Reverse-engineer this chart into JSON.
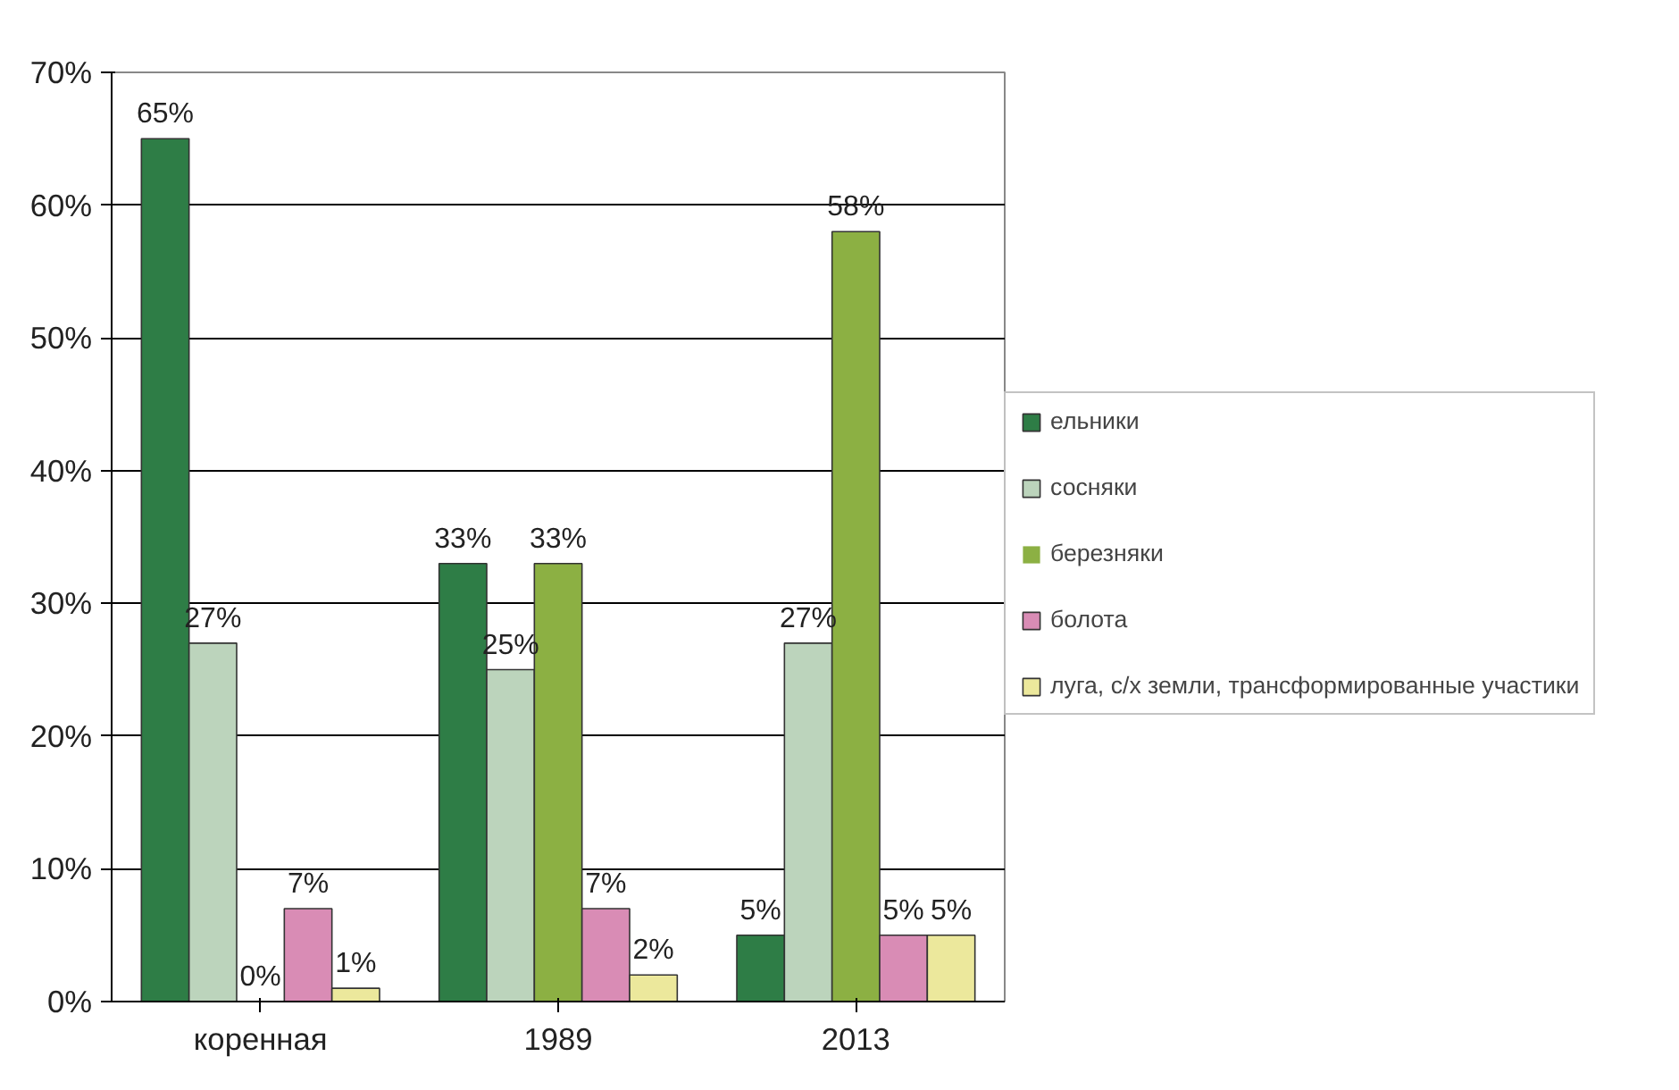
{
  "chart_data": {
    "type": "bar",
    "categories": [
      "коренная",
      "1989",
      "2013"
    ],
    "ylim": [
      0,
      70
    ],
    "yticks": [
      {
        "value": 0,
        "label": "0%"
      },
      {
        "value": 10,
        "label": "10%"
      },
      {
        "value": 20,
        "label": "20%"
      },
      {
        "value": 30,
        "label": "30%"
      },
      {
        "value": 40,
        "label": "40%"
      },
      {
        "value": 50,
        "label": "50%"
      },
      {
        "value": 60,
        "label": "60%"
      },
      {
        "value": 70,
        "label": "70%"
      }
    ],
    "grid": "y",
    "legend": "right",
    "series": [
      {
        "name": "ельники",
        "color": "#2e7d46",
        "values": [
          65,
          33,
          5
        ],
        "value_labels": [
          "65%",
          "33%",
          "5%"
        ]
      },
      {
        "name": "сосняки",
        "color": "#bcd4bc",
        "values": [
          27,
          25,
          27
        ],
        "value_labels": [
          "27%",
          "25%",
          "27%"
        ]
      },
      {
        "name": "березняки",
        "color": "#8cb043",
        "values": [
          0,
          33,
          58
        ],
        "value_labels": [
          "0%",
          "33%",
          "58%"
        ]
      },
      {
        "name": "болота",
        "color": "#d98cb5",
        "values": [
          7,
          7,
          5
        ],
        "value_labels": [
          "7%",
          "7%",
          "5%"
        ]
      },
      {
        "name": "луга, с/х земли, трансформированные участики",
        "color": "#ece89c",
        "values": [
          1,
          2,
          5
        ],
        "value_labels": [
          "1%",
          "2%",
          "5%"
        ]
      }
    ]
  }
}
